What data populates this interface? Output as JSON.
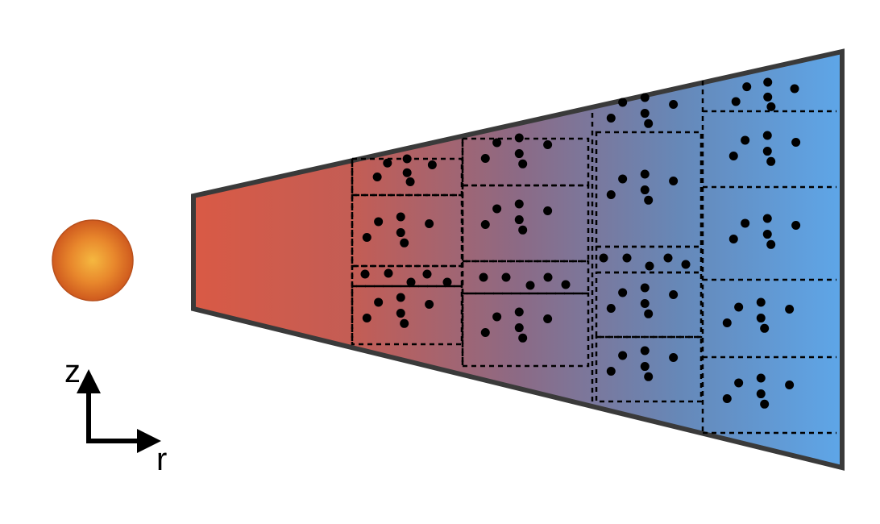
{
  "axes": {
    "z_label": "z",
    "r_label": "r"
  },
  "colors": {
    "star_core": "#f5b840",
    "star_edge": "#cf5a1e",
    "disk_inner": "#d95a45",
    "disk_outer": "#5ea6e8",
    "disk_outline": "#3a3a3a",
    "cells": "#000000",
    "particles": "#000000"
  },
  "icons": {
    "star": "star-circle",
    "axis_arrows": "arrow-up-and-right"
  }
}
